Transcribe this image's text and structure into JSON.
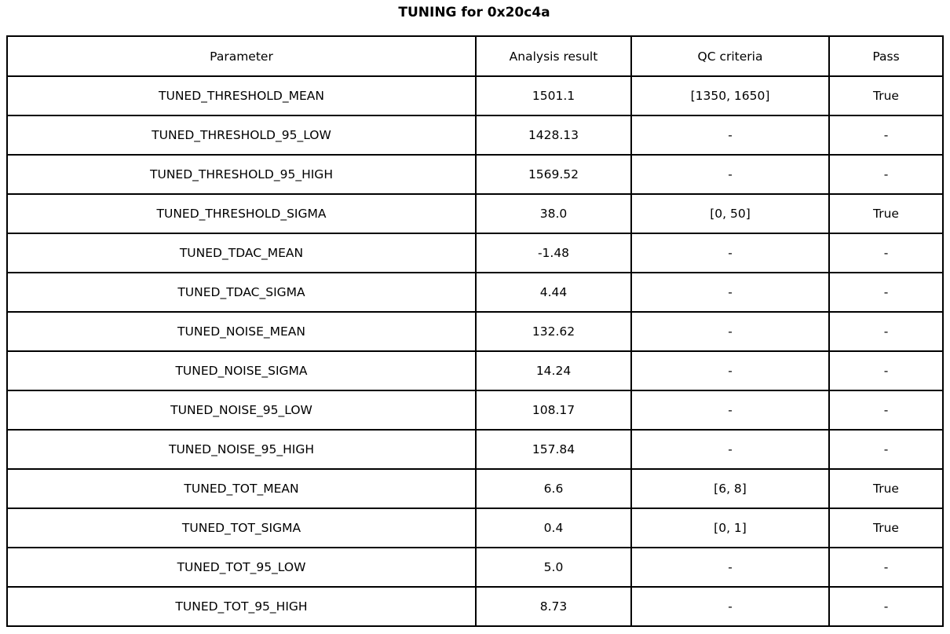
{
  "title": "TUNING for 0x20c4a",
  "colors": {
    "highlight_green": "#90EE90",
    "border": "#000000",
    "background": "#FFFFFF",
    "text": "#000000"
  },
  "table": {
    "headers": [
      "Parameter",
      "Analysis result",
      "QC criteria",
      "Pass"
    ],
    "rows": [
      {
        "parameter": "TUNED_THRESHOLD_MEAN",
        "result": "1501.1",
        "qc": "[1350, 1650]",
        "pass": "True",
        "highlight": true
      },
      {
        "parameter": "TUNED_THRESHOLD_95_LOW",
        "result": "1428.13",
        "qc": "-",
        "pass": "-",
        "highlight": false
      },
      {
        "parameter": "TUNED_THRESHOLD_95_HIGH",
        "result": "1569.52",
        "qc": "-",
        "pass": "-",
        "highlight": false
      },
      {
        "parameter": "TUNED_THRESHOLD_SIGMA",
        "result": "38.0",
        "qc": "[0, 50]",
        "pass": "True",
        "highlight": true
      },
      {
        "parameter": "TUNED_TDAC_MEAN",
        "result": "-1.48",
        "qc": "-",
        "pass": "-",
        "highlight": false
      },
      {
        "parameter": "TUNED_TDAC_SIGMA",
        "result": "4.44",
        "qc": "-",
        "pass": "-",
        "highlight": false
      },
      {
        "parameter": "TUNED_NOISE_MEAN",
        "result": "132.62",
        "qc": "-",
        "pass": "-",
        "highlight": false
      },
      {
        "parameter": "TUNED_NOISE_SIGMA",
        "result": "14.24",
        "qc": "-",
        "pass": "-",
        "highlight": false
      },
      {
        "parameter": "TUNED_NOISE_95_LOW",
        "result": "108.17",
        "qc": "-",
        "pass": "-",
        "highlight": false
      },
      {
        "parameter": "TUNED_NOISE_95_HIGH",
        "result": "157.84",
        "qc": "-",
        "pass": "-",
        "highlight": false
      },
      {
        "parameter": "TUNED_TOT_MEAN",
        "result": "6.6",
        "qc": "[6, 8]",
        "pass": "True",
        "highlight": true
      },
      {
        "parameter": "TUNED_TOT_SIGMA",
        "result": "0.4",
        "qc": "[0, 1]",
        "pass": "True",
        "highlight": true
      },
      {
        "parameter": "TUNED_TOT_95_LOW",
        "result": "5.0",
        "qc": "-",
        "pass": "-",
        "highlight": false
      },
      {
        "parameter": "TUNED_TOT_95_HIGH",
        "result": "8.73",
        "qc": "-",
        "pass": "-",
        "highlight": false
      }
    ]
  },
  "chart_data": {
    "type": "table",
    "title": "TUNING for 0x20c4a",
    "columns": [
      "Parameter",
      "Analysis result",
      "QC criteria",
      "Pass"
    ],
    "rows": [
      [
        "TUNED_THRESHOLD_MEAN",
        "1501.1",
        "[1350, 1650]",
        "True"
      ],
      [
        "TUNED_THRESHOLD_95_LOW",
        "1428.13",
        "-",
        "-"
      ],
      [
        "TUNED_THRESHOLD_95_HIGH",
        "1569.52",
        "-",
        "-"
      ],
      [
        "TUNED_THRESHOLD_SIGMA",
        "38.0",
        "[0, 50]",
        "True"
      ],
      [
        "TUNED_TDAC_MEAN",
        "-1.48",
        "-",
        "-"
      ],
      [
        "TUNED_TDAC_SIGMA",
        "4.44",
        "-",
        "-"
      ],
      [
        "TUNED_NOISE_MEAN",
        "132.62",
        "-",
        "-"
      ],
      [
        "TUNED_NOISE_SIGMA",
        "14.24",
        "-",
        "-"
      ],
      [
        "TUNED_NOISE_95_LOW",
        "108.17",
        "-",
        "-"
      ],
      [
        "TUNED_NOISE_95_HIGH",
        "157.84",
        "-",
        "-"
      ],
      [
        "TUNED_TOT_MEAN",
        "6.6",
        "[6, 8]",
        "True"
      ],
      [
        "TUNED_TOT_SIGMA",
        "0.4",
        "[0, 1]",
        "True"
      ],
      [
        "TUNED_TOT_95_LOW",
        "5.0",
        "-",
        "-"
      ],
      [
        "TUNED_TOT_95_HIGH",
        "8.73",
        "-",
        "-"
      ]
    ],
    "highlighted_row_indices": [
      0,
      3,
      10,
      11
    ],
    "highlight_meaning": "rows with QC criteria applied and Pass = True",
    "legend_position": "none",
    "grid": true
  }
}
